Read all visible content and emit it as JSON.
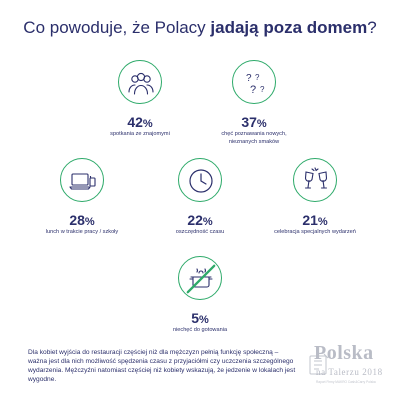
{
  "title": {
    "prefix": "Co powoduje, że Polacy ",
    "bold": "jadają poza domem",
    "suffix": "?"
  },
  "items": [
    {
      "percent": "42",
      "unit": "%",
      "caption": "spotkania ze znajomymi",
      "icon": "people-group-icon"
    },
    {
      "percent": "37",
      "unit": "%",
      "caption": "chęć poznawania nowych, nieznanych smaków",
      "icon": "question-marks-icon"
    },
    {
      "percent": "28",
      "unit": "%",
      "caption": "lunch w trakcie pracy / szkoły",
      "icon": "laptop-coffee-icon"
    },
    {
      "percent": "22",
      "unit": "%",
      "caption": "oszczędność czasu",
      "icon": "clock-icon"
    },
    {
      "percent": "21",
      "unit": "%",
      "caption": "celebracja specjalnych wydarzeń",
      "icon": "wine-glasses-icon"
    },
    {
      "percent": "5",
      "unit": "%",
      "caption": "niechęć do gotowania",
      "icon": "no-cooking-pot-icon"
    }
  ],
  "footer": {
    "text": "Dla kobiet wyjścia do restauracji częściej niż dla mężczyzn pełnią funkcję społeczną – ważna jest dla nich możliwość spędzenia czasu z przyjaciółmi czy uczczenia szczególnego wydarzenia. Mężczyźni natomiast częściej niż kobiety wskazują, że jedzenie w lokalach jest wygodne."
  },
  "logo": {
    "name": "Polska",
    "subtitle": "na Talerzu 2018",
    "tagline": "Raport Firmy MAKRO Cash&Carry Polska"
  },
  "colors": {
    "accent": "#2eaa6a",
    "text": "#2b2f6b",
    "logo": "#b9bcc6"
  }
}
